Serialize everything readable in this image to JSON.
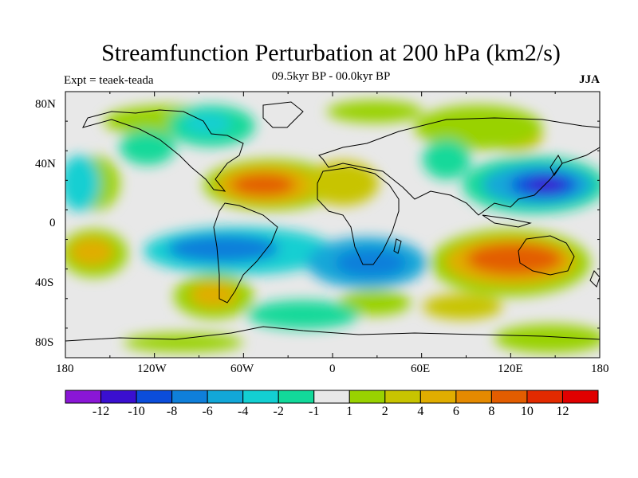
{
  "header": {
    "title": "Streamfunction Perturbation at 200 hPa (km2/s)",
    "subtitle": "09.5kyr BP - 00.0kyr BP",
    "left_label": "Expt = teaek-teada",
    "right_label": "JJA"
  },
  "map": {
    "projection": "cylindrical equidistant",
    "lat_ticks": [
      "80N",
      "40N",
      "0",
      "40S",
      "80S"
    ],
    "lon_ticks": [
      "180",
      "120W",
      "60W",
      "0",
      "60E",
      "120E",
      "180"
    ]
  },
  "colorbar": {
    "labels": [
      "-12",
      "-10",
      "-8",
      "-6",
      "-4",
      "-2",
      "-1",
      "1",
      "2",
      "4",
      "6",
      "8",
      "10",
      "12"
    ],
    "colors": [
      "#8a16d6",
      "#3a0fd0",
      "#0b4ddb",
      "#0f7fda",
      "#12a7d8",
      "#13cfd2",
      "#12d99a",
      "#e8e8e8",
      "#99d200",
      "#c8c400",
      "#e0ad00",
      "#e58a00",
      "#e35d00",
      "#e32a00",
      "#e00000"
    ]
  },
  "field_features": [
    {
      "name": "positive-north-atlantic",
      "lon": -40,
      "lat": 25,
      "value": 8,
      "label": "North Atlantic high"
    },
    {
      "name": "positive-north-africa",
      "lon": 5,
      "lat": 22,
      "value": 4,
      "label": "North Africa"
    },
    {
      "name": "positive-australia",
      "lon": 130,
      "lat": -25,
      "value": 8,
      "label": "Australia"
    },
    {
      "name": "positive-south-pacific-west",
      "lon": -155,
      "lat": -18,
      "value": 6,
      "label": "South Pacific west"
    },
    {
      "name": "positive-patagonia",
      "lon": -75,
      "lat": -48,
      "value": 6,
      "label": "Patagonia"
    },
    {
      "name": "positive-siberia",
      "lon": 110,
      "lat": 60,
      "value": 2,
      "label": "Siberia"
    },
    {
      "name": "negative-north-pacific",
      "lon": 150,
      "lat": 28,
      "value": -10,
      "label": "North Pacific low"
    },
    {
      "name": "negative-south-america",
      "lon": -75,
      "lat": -18,
      "value": -6,
      "label": "South America"
    },
    {
      "name": "negative-indian-ocean",
      "lon": 30,
      "lat": -25,
      "value": -7,
      "label": "Indian Ocean"
    },
    {
      "name": "negative-canada",
      "lon": -95,
      "lat": 60,
      "value": -2,
      "label": "Canada"
    },
    {
      "name": "negative-east-pacific",
      "lon": -175,
      "lat": 20,
      "value": -3,
      "label": "East Pacific"
    },
    {
      "name": "negative-southern-ocean",
      "lon": -30,
      "lat": -45,
      "value": -2,
      "label": "Southern Ocean"
    }
  ]
}
